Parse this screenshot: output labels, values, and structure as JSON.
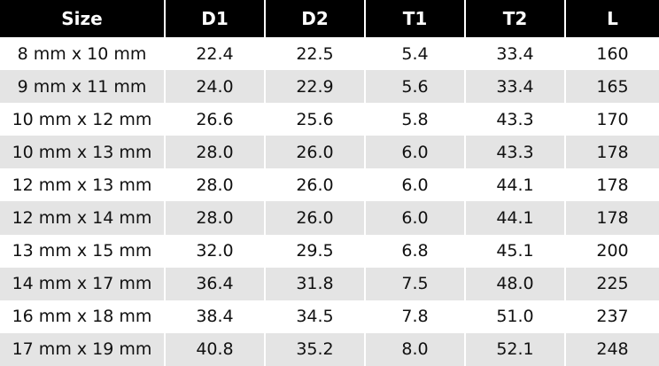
{
  "table": {
    "header": [
      "Size",
      "D1",
      "D2",
      "T1",
      "T2",
      "L"
    ],
    "rows": [
      [
        "8 mm x 10 mm",
        "22.4",
        "22.5",
        "5.4",
        "33.4",
        "160"
      ],
      [
        "9 mm x 11 mm",
        "24.0",
        "22.9",
        "5.6",
        "33.4",
        "165"
      ],
      [
        "10 mm x 12 mm",
        "26.6",
        "25.6",
        "5.8",
        "43.3",
        "170"
      ],
      [
        "10 mm x 13 mm",
        "28.0",
        "26.0",
        "6.0",
        "43.3",
        "178"
      ],
      [
        "12 mm x 13 mm",
        "28.0",
        "26.0",
        "6.0",
        "44.1",
        "178"
      ],
      [
        "12 mm x 14 mm",
        "28.0",
        "26.0",
        "6.0",
        "44.1",
        "178"
      ],
      [
        "13 mm x 15 mm",
        "32.0",
        "29.5",
        "6.8",
        "45.1",
        "200"
      ],
      [
        "14 mm x 17 mm",
        "36.4",
        "31.8",
        "7.5",
        "48.0",
        "225"
      ],
      [
        "16 mm x 18 mm",
        "38.4",
        "34.5",
        "7.8",
        "51.0",
        "237"
      ],
      [
        "17 mm x 19 mm",
        "40.8",
        "35.2",
        "8.0",
        "52.1",
        "248"
      ]
    ]
  }
}
